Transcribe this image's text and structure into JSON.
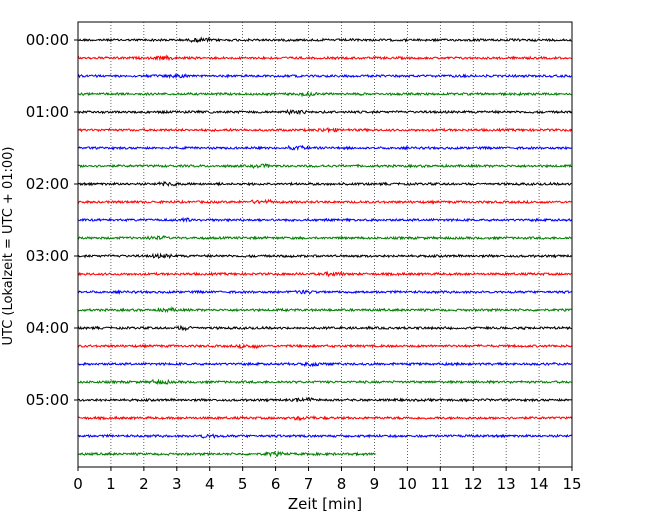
{
  "chart_data": {
    "type": "line",
    "title": "",
    "xlabel": "Zeit  [min]",
    "ylabel": "UTC (Lokalzeit = UTC + 01:00)",
    "xlim": [
      0,
      15
    ],
    "xticks": [
      "0",
      "1",
      "2",
      "3",
      "4",
      "5",
      "6",
      "7",
      "8",
      "9",
      "10",
      "11",
      "12",
      "13",
      "14",
      "15"
    ],
    "yticks": [
      "00:00",
      "01:00",
      "02:00",
      "03:00",
      "04:00",
      "05:00"
    ],
    "grid": "vertical dotted at each minute",
    "line_period_minutes": 15,
    "line_colors": [
      "#000000",
      "#ff0000",
      "#0000ff",
      "#007f00"
    ],
    "traces": [
      {
        "start": "00:00",
        "color": "#000000",
        "end_min": 15
      },
      {
        "start": "00:15",
        "color": "#ff0000",
        "end_min": 15
      },
      {
        "start": "00:30",
        "color": "#0000ff",
        "end_min": 15
      },
      {
        "start": "00:45",
        "color": "#007f00",
        "end_min": 15
      },
      {
        "start": "01:00",
        "color": "#000000",
        "end_min": 15
      },
      {
        "start": "01:15",
        "color": "#ff0000",
        "end_min": 15
      },
      {
        "start": "01:30",
        "color": "#0000ff",
        "end_min": 15
      },
      {
        "start": "01:45",
        "color": "#007f00",
        "end_min": 15
      },
      {
        "start": "02:00",
        "color": "#000000",
        "end_min": 15
      },
      {
        "start": "02:15",
        "color": "#ff0000",
        "end_min": 15
      },
      {
        "start": "02:30",
        "color": "#0000ff",
        "end_min": 15
      },
      {
        "start": "02:45",
        "color": "#007f00",
        "end_min": 15
      },
      {
        "start": "03:00",
        "color": "#000000",
        "end_min": 15
      },
      {
        "start": "03:15",
        "color": "#ff0000",
        "end_min": 15
      },
      {
        "start": "03:30",
        "color": "#0000ff",
        "end_min": 15
      },
      {
        "start": "03:45",
        "color": "#007f00",
        "end_min": 15
      },
      {
        "start": "04:00",
        "color": "#000000",
        "end_min": 15
      },
      {
        "start": "04:15",
        "color": "#ff0000",
        "end_min": 15
      },
      {
        "start": "04:30",
        "color": "#0000ff",
        "end_min": 15
      },
      {
        "start": "04:45",
        "color": "#007f00",
        "end_min": 15
      },
      {
        "start": "05:00",
        "color": "#000000",
        "end_min": 15
      },
      {
        "start": "05:15",
        "color": "#ff0000",
        "end_min": 15
      },
      {
        "start": "05:30",
        "color": "#0000ff",
        "end_min": 15
      },
      {
        "start": "05:45",
        "color": "#007f00",
        "end_min": 9.05
      }
    ]
  }
}
